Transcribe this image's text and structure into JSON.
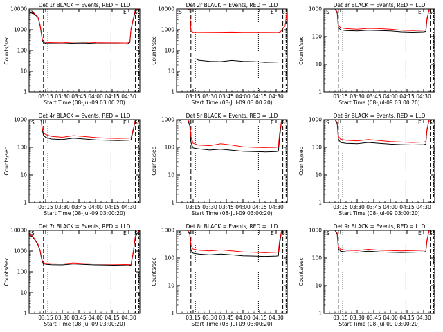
{
  "chart_data": [
    {
      "type": "line",
      "title": "Det 1r BLACK = Events, RED = LLD",
      "xlabel": "Start Time (08-Jul-09 03:00:20)",
      "ylabel": "Counts/sec",
      "y_scale": "log",
      "ylim": [
        1,
        10000
      ],
      "yticks": [
        "1",
        "10",
        "100",
        "1000",
        "10000"
      ],
      "xlim_minutes": [
        0,
        100
      ],
      "xticks": [
        "03:15",
        "03:30",
        "03:45",
        "04:00",
        "04:15",
        "04:30"
      ],
      "markers": {
        "S_left": "S",
        "E": "E",
        "S_right": "S"
      },
      "series": [
        {
          "color": "#000000",
          "x": [
            0,
            4,
            8,
            10,
            11,
            12,
            13,
            15,
            20,
            30,
            40,
            50,
            60,
            70,
            80,
            89,
            91,
            92,
            94,
            96,
            100
          ],
          "values": [
            7000,
            6000,
            4000,
            1500,
            700,
            300,
            250,
            220,
            215,
            210,
            225,
            230,
            215,
            210,
            210,
            205,
            250,
            1000,
            3000,
            8000,
            10000
          ]
        },
        {
          "color": "#ff0000",
          "x": [
            0,
            4,
            8,
            10,
            11,
            12,
            13,
            15,
            20,
            30,
            40,
            50,
            60,
            70,
            80,
            89,
            91,
            92,
            94,
            96,
            100
          ],
          "values": [
            7500,
            6500,
            4200,
            1700,
            800,
            330,
            280,
            245,
            240,
            235,
            255,
            260,
            240,
            235,
            235,
            230,
            270,
            1100,
            3300,
            9000,
            11000
          ]
        }
      ]
    },
    {
      "type": "line",
      "title": "Det 2r BLACK = Events, RED = LLD",
      "xlabel": "Start Time (08-Jul-09 03:00:20)",
      "ylabel": "Counts/sec",
      "y_scale": "log",
      "ylim": [
        1,
        10000
      ],
      "yticks": [
        "1",
        "10",
        "100",
        "1000",
        "10000"
      ],
      "xlim_minutes": [
        0,
        100
      ],
      "xticks": [
        "03:15",
        "03:30",
        "03:45",
        "04:00",
        "04:15",
        "04:30"
      ],
      "markers": {
        "S_left": "S",
        "E": "E",
        "S_right": "S"
      },
      "series": [
        {
          "color": "#000000",
          "x": [
            17,
            20,
            30,
            40,
            50,
            60,
            70,
            80,
            92
          ],
          "values": [
            40,
            34,
            30,
            29,
            33,
            30,
            29,
            27,
            28
          ]
        },
        {
          "color": "#ff0000",
          "x": [
            0,
            5,
            10,
            12,
            13,
            15,
            20,
            30,
            40,
            50,
            60,
            70,
            80,
            90,
            92,
            94,
            96,
            98,
            100
          ],
          "values": [
            10000,
            10000,
            10000,
            9000,
            900,
            750,
            740,
            745,
            760,
            770,
            755,
            745,
            745,
            740,
            750,
            800,
            1200,
            1500,
            10000
          ]
        }
      ]
    },
    {
      "type": "line",
      "title": "Det 3r BLACK = Events, RED = LLD",
      "xlabel": "Start Time (08-Jul-09 03:00:20)",
      "ylabel": "Counts/sec",
      "y_scale": "log",
      "ylim": [
        1,
        1000
      ],
      "yticks": [
        "1",
        "10",
        "100",
        "1000"
      ],
      "xlim_minutes": [
        0,
        100
      ],
      "xticks": [
        "03:15",
        "03:30",
        "03:45",
        "04:00",
        "04:15",
        "04:30"
      ],
      "markers": {
        "S_left": "S",
        "E": "E",
        "S_right": "S"
      },
      "series": [
        {
          "color": "#000000",
          "x": [
            0,
            5,
            10,
            12,
            13,
            15,
            20,
            30,
            40,
            50,
            60,
            70,
            80,
            90,
            92,
            93,
            95,
            100
          ],
          "values": [
            1000,
            1000,
            1000,
            700,
            220,
            175,
            165,
            160,
            170,
            165,
            160,
            150,
            145,
            150,
            155,
            400,
            1000,
            1000
          ]
        },
        {
          "color": "#ff0000",
          "x": [
            0,
            5,
            10,
            12,
            13,
            15,
            20,
            30,
            40,
            50,
            60,
            70,
            80,
            90,
            92,
            93,
            95,
            100
          ],
          "values": [
            1100,
            1100,
            1100,
            800,
            260,
            210,
            195,
            185,
            200,
            195,
            185,
            170,
            165,
            170,
            175,
            450,
            1100,
            1100
          ]
        }
      ]
    },
    {
      "type": "line",
      "title": "Det 4r BLACK = Events, RED = LLD",
      "xlabel": "Start Time (08-Jul-09 03:00:20)",
      "ylabel": "Counts/sec",
      "y_scale": "log",
      "ylim": [
        1,
        1000
      ],
      "yticks": [
        "1",
        "10",
        "100",
        "1000"
      ],
      "xlim_minutes": [
        0,
        100
      ],
      "xticks": [
        "03:15",
        "03:30",
        "03:45",
        "04:00",
        "04:15",
        "04:30"
      ],
      "markers": {
        "S_left": "S",
        "E": "E",
        "S_right": "S"
      },
      "series": [
        {
          "color": "#000000",
          "x": [
            0,
            5,
            10,
            11,
            12,
            13,
            15,
            20,
            30,
            40,
            50,
            60,
            70,
            80,
            90,
            92,
            94,
            96,
            100
          ],
          "values": [
            1000,
            1000,
            1000,
            900,
            400,
            270,
            230,
            200,
            190,
            215,
            200,
            185,
            180,
            175,
            180,
            185,
            400,
            1000,
            1000
          ]
        },
        {
          "color": "#ff0000",
          "x": [
            0,
            5,
            10,
            11,
            12,
            13,
            15,
            20,
            30,
            40,
            50,
            60,
            70,
            80,
            90,
            92,
            94,
            96,
            100
          ],
          "values": [
            1100,
            1100,
            1100,
            1000,
            480,
            330,
            290,
            250,
            230,
            265,
            245,
            225,
            215,
            210,
            215,
            220,
            450,
            1100,
            1100
          ]
        }
      ]
    },
    {
      "type": "line",
      "title": "Det 5r BLACK = Events, RED = LLD",
      "xlabel": "Start Time (08-Jul-09 03:00:20)",
      "ylabel": "Counts/sec",
      "y_scale": "log",
      "ylim": [
        1,
        1000
      ],
      "yticks": [
        "1",
        "10",
        "100",
        "1000"
      ],
      "xlim_minutes": [
        0,
        100
      ],
      "xticks": [
        "03:15",
        "03:30",
        "03:45",
        "04:00",
        "04:15",
        "04:30"
      ],
      "markers": {
        "S_left": "S",
        "E": "E",
        "S_right": "S"
      },
      "series": [
        {
          "color": "#000000",
          "x": [
            0,
            5,
            10,
            12,
            13,
            15,
            20,
            30,
            40,
            50,
            60,
            70,
            80,
            90,
            92,
            93,
            95,
            100
          ],
          "values": [
            1000,
            1000,
            1000,
            600,
            150,
            95,
            88,
            80,
            85,
            78,
            72,
            70,
            68,
            70,
            72,
            200,
            1000,
            1000
          ]
        },
        {
          "color": "#ff0000",
          "x": [
            0,
            5,
            10,
            12,
            13,
            15,
            20,
            30,
            40,
            50,
            60,
            70,
            80,
            90,
            92,
            93,
            95,
            100
          ],
          "values": [
            1100,
            1100,
            1100,
            800,
            250,
            140,
            120,
            115,
            135,
            120,
            105,
            100,
            98,
            100,
            105,
            300,
            1100,
            1100
          ]
        }
      ]
    },
    {
      "type": "line",
      "title": "Det 6r BLACK = Events, RED = LLD",
      "xlabel": "Start Time (08-Jul-09 03:00:20)",
      "ylabel": "Counts/sec",
      "y_scale": "log",
      "ylim": [
        1,
        1000
      ],
      "yticks": [
        "1",
        "10",
        "100",
        "1000"
      ],
      "xlim_minutes": [
        0,
        100
      ],
      "xticks": [
        "03:15",
        "03:30",
        "03:45",
        "04:00",
        "04:15",
        "04:30"
      ],
      "markers": {
        "S_left": "S",
        "E": "E",
        "S_right": "S"
      },
      "series": [
        {
          "color": "#000000",
          "x": [
            0,
            5,
            10,
            12,
            13,
            15,
            20,
            30,
            40,
            50,
            60,
            70,
            80,
            90,
            92,
            93,
            95,
            100
          ],
          "values": [
            1000,
            1000,
            1000,
            700,
            200,
            150,
            140,
            135,
            150,
            140,
            130,
            125,
            122,
            125,
            130,
            400,
            1000,
            1000
          ]
        },
        {
          "color": "#ff0000",
          "x": [
            0,
            5,
            10,
            12,
            13,
            15,
            20,
            30,
            40,
            50,
            60,
            70,
            80,
            90,
            92,
            93,
            95,
            100
          ],
          "values": [
            1100,
            1100,
            1100,
            800,
            250,
            195,
            180,
            170,
            190,
            175,
            160,
            155,
            150,
            155,
            160,
            450,
            1100,
            1100
          ]
        }
      ]
    },
    {
      "type": "line",
      "title": "Det 7r BLACK = Events, RED = LLD",
      "xlabel": "Start Time (08-Jul-09 03:00:20)",
      "ylabel": "Counts/sec",
      "y_scale": "log",
      "ylim": [
        1,
        10000
      ],
      "yticks": [
        "1",
        "10",
        "100",
        "1000",
        "10000"
      ],
      "xlim_minutes": [
        0,
        100
      ],
      "xticks": [
        "03:15",
        "03:30",
        "03:45",
        "04:00",
        "04:15",
        "04:30"
      ],
      "markers": {
        "S_left": "S",
        "E": "E",
        "S_right": "S"
      },
      "series": [
        {
          "color": "#000000",
          "x": [
            0,
            3,
            6,
            8,
            10,
            11,
            12,
            13,
            15,
            20,
            30,
            40,
            50,
            60,
            70,
            80,
            90,
            92,
            94,
            96,
            100
          ],
          "values": [
            6000,
            5000,
            3000,
            2000,
            1000,
            500,
            300,
            250,
            230,
            220,
            215,
            240,
            225,
            215,
            210,
            205,
            200,
            210,
            800,
            5000,
            10000
          ]
        },
        {
          "color": "#ff0000",
          "x": [
            0,
            3,
            6,
            8,
            10,
            11,
            12,
            13,
            15,
            20,
            30,
            40,
            50,
            60,
            70,
            80,
            90,
            92,
            94,
            96,
            100
          ],
          "values": [
            6500,
            5500,
            3200,
            2200,
            1100,
            550,
            330,
            275,
            255,
            245,
            240,
            270,
            250,
            240,
            235,
            228,
            222,
            232,
            900,
            5500,
            11000
          ]
        }
      ]
    },
    {
      "type": "line",
      "title": "Det 8r BLACK = Events, RED = LLD",
      "xlabel": "Start Time (08-Jul-09 03:00:20)",
      "ylabel": "Counts/sec",
      "y_scale": "log",
      "ylim": [
        1,
        1000
      ],
      "yticks": [
        "1",
        "10",
        "100",
        "1000"
      ],
      "xlim_minutes": [
        0,
        100
      ],
      "xticks": [
        "03:15",
        "03:30",
        "03:45",
        "04:00",
        "04:15",
        "04:30"
      ],
      "markers": {
        "S_left": "S",
        "E": "E",
        "S_right": "S"
      },
      "series": [
        {
          "color": "#000000",
          "x": [
            0,
            5,
            10,
            12,
            13,
            15,
            20,
            30,
            40,
            50,
            60,
            70,
            80,
            90,
            92,
            93,
            95,
            100
          ],
          "values": [
            1000,
            1000,
            1000,
            700,
            200,
            150,
            140,
            130,
            140,
            130,
            120,
            118,
            115,
            118,
            120,
            300,
            1000,
            1000
          ]
        },
        {
          "color": "#ff0000",
          "x": [
            0,
            5,
            10,
            12,
            13,
            15,
            20,
            30,
            40,
            50,
            60,
            70,
            80,
            90,
            92,
            93,
            95,
            100
          ],
          "values": [
            1100,
            1100,
            1100,
            800,
            300,
            210,
            190,
            180,
            195,
            180,
            165,
            160,
            155,
            160,
            165,
            400,
            1100,
            1100
          ]
        }
      ]
    },
    {
      "type": "line",
      "title": "Det 9r BLACK = Events, RED = LLD",
      "xlabel": "Start Time (08-Jul-09 03:00:20)",
      "ylabel": "Counts/sec",
      "y_scale": "log",
      "ylim": [
        1,
        1000
      ],
      "yticks": [
        "1",
        "10",
        "100",
        "1000"
      ],
      "xlim_minutes": [
        0,
        100
      ],
      "xticks": [
        "03:15",
        "03:30",
        "03:45",
        "04:00",
        "04:15",
        "04:30"
      ],
      "markers": {
        "S_left": "S",
        "E": "E",
        "S_right": "S"
      },
      "series": [
        {
          "color": "#000000",
          "x": [
            0,
            5,
            10,
            12,
            13,
            15,
            20,
            30,
            40,
            50,
            60,
            70,
            80,
            90,
            92,
            93,
            95,
            100
          ],
          "values": [
            1000,
            1000,
            1000,
            700,
            220,
            175,
            165,
            160,
            175,
            165,
            160,
            158,
            160,
            165,
            170,
            400,
            1000,
            1000
          ]
        },
        {
          "color": "#ff0000",
          "x": [
            0,
            5,
            10,
            12,
            13,
            15,
            20,
            30,
            40,
            50,
            60,
            70,
            80,
            90,
            92,
            93,
            95,
            100
          ],
          "values": [
            1100,
            1100,
            1100,
            800,
            260,
            205,
            190,
            185,
            205,
            190,
            185,
            180,
            185,
            190,
            195,
            450,
            1100,
            1100
          ]
        }
      ]
    }
  ]
}
